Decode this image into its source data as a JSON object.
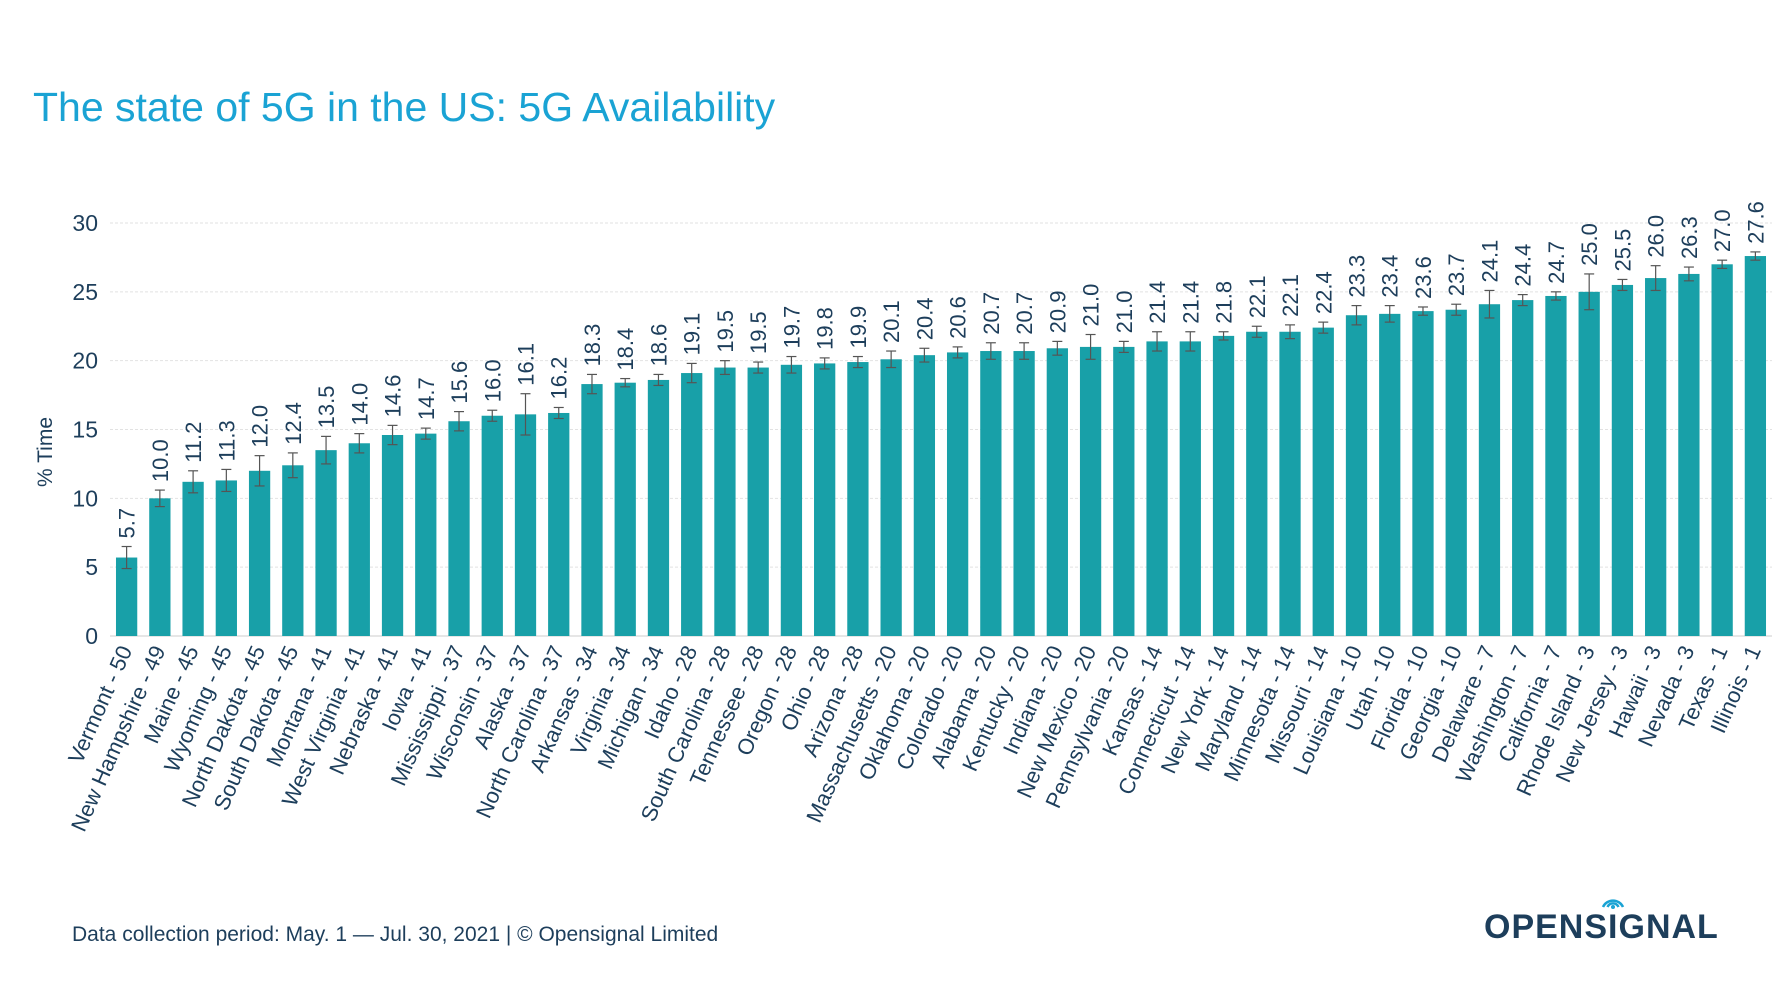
{
  "title": "The state of 5G in the US: 5G Availability",
  "footer": "Data collection period: May. 1 — Jul. 30, 2021 | © Opensignal Limited",
  "logo": {
    "pre": "OPENS",
    "i": "I",
    "post": "GNAL",
    "icon": "signal-wave-icon"
  },
  "colors": {
    "bar": "#18a0a8",
    "title": "#1aa3d4",
    "text": "#1d3e5b",
    "grid": "#e2e2e2"
  },
  "chart_data": {
    "type": "bar",
    "title": "The state of 5G in the US: 5G Availability",
    "xlabel": "",
    "ylabel": "% Time",
    "ylim": [
      0,
      30
    ],
    "yticks": [
      0,
      5,
      10,
      15,
      20,
      25,
      30
    ],
    "grid": true,
    "error_bars": true,
    "categories": [
      "Vermont - 50",
      "New Hampshire - 49",
      "Maine - 45",
      "Wyoming - 45",
      "North Dakota - 45",
      "South Dakota - 45",
      "Montana - 41",
      "West Virginia - 41",
      "Nebraska - 41",
      "Iowa - 41",
      "Mississippi - 37",
      "Wisconsin - 37",
      "Alaska - 37",
      "North Carolina - 37",
      "Arkansas - 34",
      "Virginia - 34",
      "Michigan - 34",
      "Idaho - 28",
      "South Carolina - 28",
      "Tennessee - 28",
      "Oregon - 28",
      "Ohio - 28",
      "Arizona - 28",
      "Massachusetts - 20",
      "Oklahoma - 20",
      "Colorado - 20",
      "Alabama - 20",
      "Kentucky - 20",
      "Indiana - 20",
      "New Mexico - 20",
      "Pennsylvania - 20",
      "Kansas - 14",
      "Connecticut - 14",
      "New York - 14",
      "Maryland - 14",
      "Minnesota - 14",
      "Missouri - 14",
      "Louisiana - 10",
      "Utah - 10",
      "Florida - 10",
      "Georgia - 10",
      "Delaware - 7",
      "Washington - 7",
      "California - 7",
      "Rhode Island - 3",
      "New Jersey - 3",
      "Hawaii - 3",
      "Nevada - 3",
      "Texas - 1",
      "Illinois - 1"
    ],
    "values": [
      5.7,
      10.0,
      11.2,
      11.3,
      12.0,
      12.4,
      13.5,
      14.0,
      14.6,
      14.7,
      15.6,
      16.0,
      16.1,
      16.2,
      18.3,
      18.4,
      18.6,
      19.1,
      19.5,
      19.5,
      19.7,
      19.8,
      19.9,
      20.1,
      20.4,
      20.6,
      20.7,
      20.7,
      20.9,
      21.0,
      21.0,
      21.4,
      21.4,
      21.8,
      22.1,
      22.1,
      22.4,
      23.3,
      23.4,
      23.6,
      23.7,
      24.1,
      24.4,
      24.7,
      25.0,
      25.5,
      26.0,
      26.3,
      27.0,
      27.6
    ],
    "labels": [
      "5.7",
      "10.0",
      "11.2",
      "11.3",
      "12.0",
      "12.4",
      "13.5",
      "14.0",
      "14.6",
      "14.7",
      "15.6",
      "16.0",
      "16.1",
      "16.2",
      "18.3",
      "18.4",
      "18.6",
      "19.1",
      "19.5",
      "19.5",
      "19.7",
      "19.8",
      "19.9",
      "20.1",
      "20.4",
      "20.6",
      "20.7",
      "20.7",
      "20.9",
      "21.0",
      "21.0",
      "21.4",
      "21.4",
      "21.8",
      "22.1",
      "22.1",
      "22.4",
      "23.3",
      "23.4",
      "23.6",
      "23.7",
      "24.1",
      "24.4",
      "24.7",
      "25.0",
      "25.5",
      "26.0",
      "26.3",
      "27.0",
      "27.6"
    ],
    "errors": [
      0.8,
      0.6,
      0.8,
      0.8,
      1.1,
      0.9,
      1.0,
      0.7,
      0.7,
      0.4,
      0.7,
      0.4,
      1.5,
      0.4,
      0.7,
      0.3,
      0.4,
      0.7,
      0.5,
      0.4,
      0.6,
      0.4,
      0.4,
      0.6,
      0.5,
      0.4,
      0.6,
      0.6,
      0.5,
      0.9,
      0.4,
      0.7,
      0.7,
      0.3,
      0.4,
      0.5,
      0.4,
      0.7,
      0.6,
      0.3,
      0.4,
      1.0,
      0.4,
      0.3,
      1.3,
      0.4,
      0.9,
      0.5,
      0.3,
      0.3
    ]
  }
}
